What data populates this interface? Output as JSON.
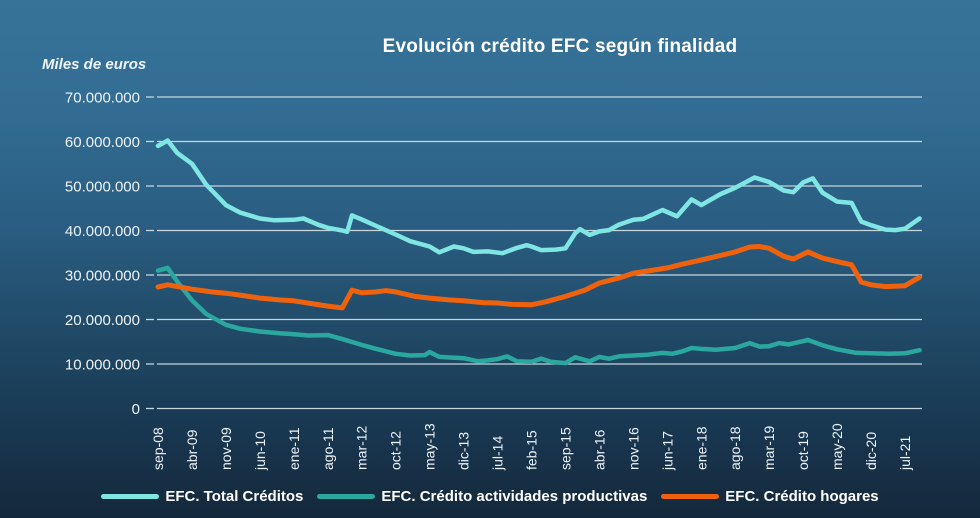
{
  "title": "Evolución crédito EFC según finalidad",
  "axis_note": "Miles de euros",
  "colors": {
    "background_top": "#377399",
    "background_bottom": "#14283a",
    "gridline": "#c7d5dc",
    "text": "#edf3f6",
    "title_text": "#ffffff",
    "series_total": "#7fe6e3",
    "series_productivas": "#2aa79e",
    "series_hogares": "#ee620d"
  },
  "chart_data": {
    "type": "line",
    "title": "Evolución crédito EFC según finalidad",
    "xlabel": "",
    "ylabel": "Miles de euros",
    "ylim": [
      0,
      70000000
    ],
    "grid": true,
    "legend_position": "bottom",
    "x_axis": {
      "unit": "months_since_sep-08",
      "max_month": 157,
      "ticks": [
        {
          "month": 0,
          "label": "sep-08"
        },
        {
          "month": 7,
          "label": "abr-09"
        },
        {
          "month": 14,
          "label": "nov-09"
        },
        {
          "month": 21,
          "label": "jun-10"
        },
        {
          "month": 28,
          "label": "ene-11"
        },
        {
          "month": 35,
          "label": "ago-11"
        },
        {
          "month": 42,
          "label": "mar-12"
        },
        {
          "month": 49,
          "label": "oct-12"
        },
        {
          "month": 56,
          "label": "may-13"
        },
        {
          "month": 63,
          "label": "dic-13"
        },
        {
          "month": 70,
          "label": "jul-14"
        },
        {
          "month": 77,
          "label": "feb-15"
        },
        {
          "month": 84,
          "label": "sep-15"
        },
        {
          "month": 91,
          "label": "abr-16"
        },
        {
          "month": 98,
          "label": "nov-16"
        },
        {
          "month": 105,
          "label": "jun-17"
        },
        {
          "month": 112,
          "label": "ene-18"
        },
        {
          "month": 119,
          "label": "ago-18"
        },
        {
          "month": 126,
          "label": "mar-19"
        },
        {
          "month": 133,
          "label": "oct-19"
        },
        {
          "month": 140,
          "label": "may-20"
        },
        {
          "month": 147,
          "label": "dic-20"
        },
        {
          "month": 154,
          "label": "jul-21"
        }
      ]
    },
    "y_axis": {
      "ticks": [
        {
          "value": 70000000,
          "label": "70.000.000"
        },
        {
          "value": 60000000,
          "label": "60.000.000"
        },
        {
          "value": 50000000,
          "label": "50.000.000"
        },
        {
          "value": 40000000,
          "label": "40.000.000"
        },
        {
          "value": 30000000,
          "label": "30.000.000"
        },
        {
          "value": 20000000,
          "label": "20.000.000"
        },
        {
          "value": 10000000,
          "label": "10.000.000"
        },
        {
          "value": 0,
          "label": "0"
        }
      ]
    },
    "series": [
      {
        "name": "EFC. Total Créditos",
        "color": "#7fe6e3",
        "stroke_width": 4.5,
        "points": [
          [
            0,
            59000000
          ],
          [
            2,
            60200000
          ],
          [
            4,
            57400000
          ],
          [
            7,
            55000000
          ],
          [
            10,
            50200000
          ],
          [
            12,
            48000000
          ],
          [
            14,
            45700000
          ],
          [
            17,
            44000000
          ],
          [
            21,
            42700000
          ],
          [
            24,
            42300000
          ],
          [
            28,
            42400000
          ],
          [
            30,
            42700000
          ],
          [
            33,
            41300000
          ],
          [
            35,
            40600000
          ],
          [
            38,
            40000000
          ],
          [
            39,
            39700000
          ],
          [
            40,
            43400000
          ],
          [
            42,
            42500000
          ],
          [
            45,
            41000000
          ],
          [
            49,
            39100000
          ],
          [
            52,
            37600000
          ],
          [
            56,
            36400000
          ],
          [
            58,
            35100000
          ],
          [
            61,
            36400000
          ],
          [
            63,
            36000000
          ],
          [
            65,
            35200000
          ],
          [
            68,
            35300000
          ],
          [
            71,
            34900000
          ],
          [
            74,
            36100000
          ],
          [
            76,
            36700000
          ],
          [
            77,
            36400000
          ],
          [
            79,
            35600000
          ],
          [
            82,
            35700000
          ],
          [
            84,
            36000000
          ],
          [
            86,
            39400000
          ],
          [
            87,
            40300000
          ],
          [
            89,
            39000000
          ],
          [
            91,
            39800000
          ],
          [
            93,
            40100000
          ],
          [
            95,
            41300000
          ],
          [
            98,
            42400000
          ],
          [
            100,
            42600000
          ],
          [
            104,
            44600000
          ],
          [
            107,
            43200000
          ],
          [
            110,
            47000000
          ],
          [
            112,
            45700000
          ],
          [
            116,
            48200000
          ],
          [
            119,
            49600000
          ],
          [
            123,
            51900000
          ],
          [
            126,
            50900000
          ],
          [
            129,
            49000000
          ],
          [
            131,
            48600000
          ],
          [
            133,
            50800000
          ],
          [
            135,
            51700000
          ],
          [
            137,
            48500000
          ],
          [
            140,
            46500000
          ],
          [
            143,
            46200000
          ],
          [
            145,
            42000000
          ],
          [
            147,
            41200000
          ],
          [
            150,
            40200000
          ],
          [
            152,
            40100000
          ],
          [
            154,
            40400000
          ],
          [
            157,
            42700000
          ]
        ]
      },
      {
        "name": "EFC. Crédito actividades productivas",
        "color": "#2aa79e",
        "stroke_width": 4.5,
        "points": [
          [
            0,
            31000000
          ],
          [
            2,
            31600000
          ],
          [
            4,
            28500000
          ],
          [
            7,
            24300000
          ],
          [
            10,
            21200000
          ],
          [
            14,
            18800000
          ],
          [
            17,
            17900000
          ],
          [
            21,
            17300000
          ],
          [
            25,
            16900000
          ],
          [
            28,
            16700000
          ],
          [
            31,
            16400000
          ],
          [
            35,
            16500000
          ],
          [
            38,
            15600000
          ],
          [
            42,
            14300000
          ],
          [
            45,
            13400000
          ],
          [
            49,
            12300000
          ],
          [
            52,
            11900000
          ],
          [
            55,
            12000000
          ],
          [
            56,
            12700000
          ],
          [
            58,
            11600000
          ],
          [
            63,
            11300000
          ],
          [
            66,
            10600000
          ],
          [
            68,
            10800000
          ],
          [
            70,
            11100000
          ],
          [
            72,
            11700000
          ],
          [
            74,
            10600000
          ],
          [
            77,
            10500000
          ],
          [
            79,
            11200000
          ],
          [
            81,
            10500000
          ],
          [
            84,
            10200000
          ],
          [
            86,
            11500000
          ],
          [
            89,
            10600000
          ],
          [
            91,
            11600000
          ],
          [
            93,
            11200000
          ],
          [
            95,
            11700000
          ],
          [
            98,
            11900000
          ],
          [
            101,
            12100000
          ],
          [
            104,
            12500000
          ],
          [
            106,
            12300000
          ],
          [
            108,
            12800000
          ],
          [
            110,
            13600000
          ],
          [
            112,
            13400000
          ],
          [
            115,
            13200000
          ],
          [
            119,
            13600000
          ],
          [
            122,
            14700000
          ],
          [
            124,
            13900000
          ],
          [
            126,
            14000000
          ],
          [
            128,
            14700000
          ],
          [
            130,
            14400000
          ],
          [
            134,
            15400000
          ],
          [
            137,
            14200000
          ],
          [
            140,
            13300000
          ],
          [
            144,
            12500000
          ],
          [
            147,
            12400000
          ],
          [
            151,
            12300000
          ],
          [
            154,
            12400000
          ],
          [
            157,
            13100000
          ]
        ]
      },
      {
        "name": "EFC. Crédito hogares",
        "color": "#ee620d",
        "stroke_width": 5,
        "points": [
          [
            0,
            27300000
          ],
          [
            2,
            27800000
          ],
          [
            7,
            26800000
          ],
          [
            11,
            26200000
          ],
          [
            14,
            25900000
          ],
          [
            18,
            25300000
          ],
          [
            21,
            24800000
          ],
          [
            25,
            24400000
          ],
          [
            28,
            24200000
          ],
          [
            32,
            23500000
          ],
          [
            35,
            23000000
          ],
          [
            38,
            22600000
          ],
          [
            40,
            26600000
          ],
          [
            42,
            26000000
          ],
          [
            45,
            26200000
          ],
          [
            47,
            26500000
          ],
          [
            49,
            26200000
          ],
          [
            53,
            25200000
          ],
          [
            56,
            24800000
          ],
          [
            60,
            24400000
          ],
          [
            63,
            24200000
          ],
          [
            67,
            23800000
          ],
          [
            70,
            23700000
          ],
          [
            73,
            23400000
          ],
          [
            77,
            23300000
          ],
          [
            80,
            24000000
          ],
          [
            82,
            24600000
          ],
          [
            84,
            25200000
          ],
          [
            88,
            26600000
          ],
          [
            91,
            28200000
          ],
          [
            95,
            29300000
          ],
          [
            98,
            30400000
          ],
          [
            101,
            30900000
          ],
          [
            105,
            31600000
          ],
          [
            108,
            32400000
          ],
          [
            112,
            33400000
          ],
          [
            116,
            34400000
          ],
          [
            119,
            35200000
          ],
          [
            122,
            36300000
          ],
          [
            124,
            36400000
          ],
          [
            126,
            36000000
          ],
          [
            129,
            34200000
          ],
          [
            131,
            33600000
          ],
          [
            134,
            35200000
          ],
          [
            137,
            33800000
          ],
          [
            140,
            33000000
          ],
          [
            143,
            32300000
          ],
          [
            145,
            28400000
          ],
          [
            147,
            27800000
          ],
          [
            150,
            27400000
          ],
          [
            154,
            27600000
          ],
          [
            157,
            29500000
          ]
        ]
      }
    ]
  }
}
